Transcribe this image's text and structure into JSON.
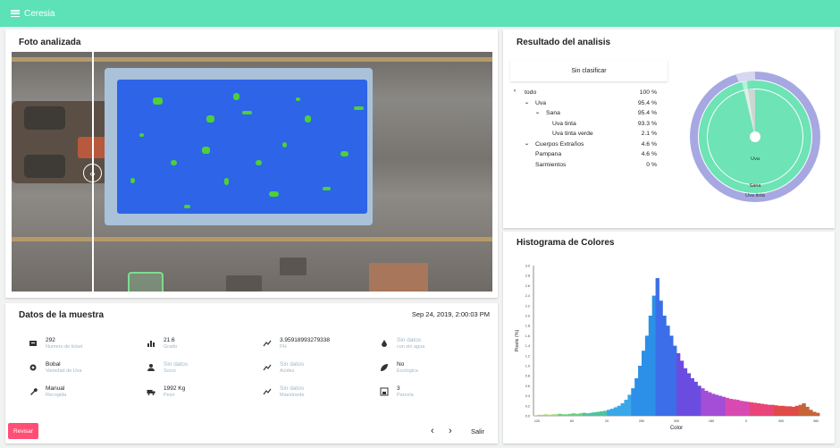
{
  "app": {
    "title": "Ceresia"
  },
  "photo": {
    "title": "Foto analizada"
  },
  "sample": {
    "title": "Datos de la muestra",
    "date": "Sep 24, 2019, 2:00:03 PM",
    "fields": [
      {
        "icon": "ticket-icon",
        "value": "292",
        "label": "Numero de ticket",
        "muted": false
      },
      {
        "icon": "bar-chart-icon",
        "value": "21.6",
        "label": "Grado",
        "muted": false
      },
      {
        "icon": "trend-icon",
        "value": "3.95918993279338",
        "label": "PH",
        "muted": false
      },
      {
        "icon": "water-drop-icon",
        "value": "Sin datos",
        "label": "con sin agua",
        "muted": true
      },
      {
        "icon": "grape-icon",
        "value": "Bobal",
        "label": "Variedad de Uva",
        "muted": false
      },
      {
        "icon": "person-icon",
        "value": "Sin datos",
        "label": "Socio",
        "muted": true
      },
      {
        "icon": "trend-icon",
        "value": "Sin datos",
        "label": "Acidez",
        "muted": true
      },
      {
        "icon": "leaf-icon",
        "value": "No",
        "label": "Ecologica",
        "muted": false
      },
      {
        "icon": "wrench-icon",
        "value": "Manual",
        "label": "Recogida",
        "muted": false
      },
      {
        "icon": "truck-icon",
        "value": "1992 Kg",
        "label": "Peso",
        "muted": false
      },
      {
        "icon": "trend-icon",
        "value": "Sin datos",
        "label": "Maestrante",
        "muted": true
      },
      {
        "icon": "scale-icon",
        "value": "3",
        "label": "Parcela",
        "muted": false
      }
    ],
    "reject_label": "Revisar",
    "exit_label": "Salir",
    "prev_icon": "‹",
    "next_icon": "›"
  },
  "result": {
    "title": "Resultado del analisis",
    "classify_label": "Sin clasificar",
    "tree": [
      {
        "label": "todo",
        "pct": "100 %",
        "level": 0,
        "chev": "‹"
      },
      {
        "label": "Uva",
        "pct": "95.4 %",
        "level": 1,
        "chev": "⌄"
      },
      {
        "label": "Sana",
        "pct": "95.4 %",
        "level": 2,
        "chev": "⌄"
      },
      {
        "label": "Uva tinta",
        "pct": "93.3 %",
        "level": 3,
        "chev": ""
      },
      {
        "label": "Uva tinta verde",
        "pct": "2.1 %",
        "level": 3,
        "chev": ""
      },
      {
        "label": "Cuerpos Extraños",
        "pct": "4.6 %",
        "level": 1,
        "chev": "⌄"
      },
      {
        "label": "Pampana",
        "pct": "4.6 %",
        "level": 2,
        "chev": ""
      },
      {
        "label": "Sarmientos",
        "pct": "0 %",
        "level": 2,
        "chev": ""
      }
    ],
    "sunburst_labels": {
      "inner": "Uva",
      "mid": "Sana",
      "outer": "Uva tinta"
    },
    "colors": {
      "uva": "#6ee3b5",
      "sana": "#7dd8bd",
      "uva_tinta": "#a8a6e0",
      "extranos": "#c8d8d0"
    }
  },
  "histogram": {
    "title": "Histograma de Colores",
    "chart_data": {
      "type": "area",
      "xlabel": "Color",
      "ylabel": "Pixels (%)",
      "x_ticks": [
        "120",
        "60",
        "20",
        "260",
        "300",
        "180",
        "0",
        "300",
        "360"
      ],
      "y_ticks": [
        "0.0",
        "0.2",
        "0.4",
        "0.6",
        "0.8",
        "1.0",
        "1.2",
        "1.4",
        "1.6",
        "1.8",
        "2.0",
        "2.2",
        "2.4",
        "2.6",
        "2.8",
        "3.0"
      ],
      "ylim": [
        0,
        3.0
      ],
      "values": [
        0.01,
        0.02,
        0.02,
        0.03,
        0.02,
        0.03,
        0.03,
        0.04,
        0.03,
        0.03,
        0.04,
        0.05,
        0.04,
        0.05,
        0.06,
        0.05,
        0.06,
        0.07,
        0.08,
        0.09,
        0.1,
        0.12,
        0.14,
        0.17,
        0.2,
        0.25,
        0.32,
        0.42,
        0.55,
        0.75,
        1.0,
        1.3,
        1.6,
        2.0,
        2.4,
        2.75,
        2.3,
        2.0,
        1.8,
        1.6,
        1.4,
        1.25,
        1.1,
        0.95,
        0.85,
        0.75,
        0.68,
        0.6,
        0.55,
        0.5,
        0.47,
        0.44,
        0.42,
        0.4,
        0.38,
        0.36,
        0.34,
        0.33,
        0.32,
        0.3,
        0.29,
        0.28,
        0.27,
        0.26,
        0.25,
        0.24,
        0.23,
        0.22,
        0.22,
        0.21,
        0.2,
        0.2,
        0.19,
        0.19,
        0.18,
        0.2,
        0.22,
        0.25,
        0.18,
        0.12,
        0.08,
        0.06
      ],
      "colors": [
        "#a6d86a",
        "#6ccf7a",
        "#4fc3a1",
        "#3aa7e8",
        "#2c8fe8",
        "#3b6ee8",
        "#6b4ce0",
        "#a24ed6",
        "#d84ab2",
        "#e8457a",
        "#e04a48",
        "#c8643a"
      ]
    }
  }
}
